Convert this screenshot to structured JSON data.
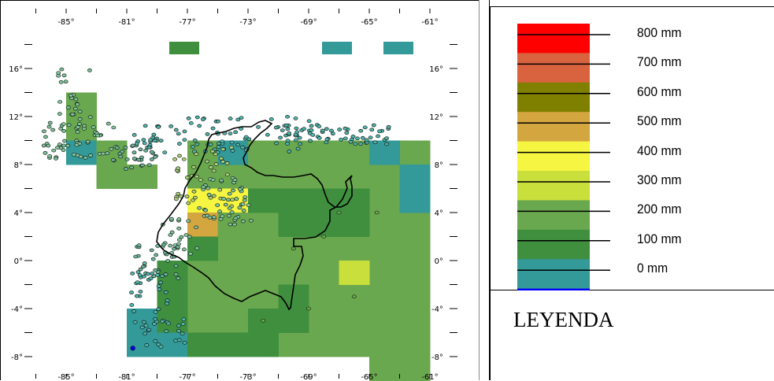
{
  "map": {
    "x_ticks_top": [
      "-85°",
      "-81°",
      "-77°",
      "-73°",
      "-69°",
      "-65°",
      "-61°"
    ],
    "x_ticks_bottom": [
      "-85°",
      "-81°",
      "-77°",
      "-73°",
      "-69°",
      "-65°",
      "-61°"
    ],
    "y_ticks_left": [
      "16°",
      "12°",
      "8°",
      "4°",
      "0°",
      "-4°",
      "-8°"
    ],
    "y_ticks_right": [
      "16°",
      "12°",
      "8°",
      "4°",
      "0°",
      "-4°",
      "-8°"
    ],
    "lon_range": [
      -86.5,
      -60
    ],
    "lat_range": [
      -9,
      19
    ],
    "colors": {
      "c0": "#0000ff",
      "c100": "#339999",
      "c200": "#3f8f3f",
      "c300": "#6aa84f",
      "c400": "#c8df3c",
      "c500": "#f5f542",
      "c600": "#d4a640",
      "c700": "#7f7f00",
      "c800": "#d9633f",
      "c900": "#ff0000"
    }
  },
  "legend": {
    "title": "LEYENDA",
    "entries": [
      {
        "label": "800 mm",
        "color": "#ff0000"
      },
      {
        "label": "700 mm",
        "color": "#d9633f"
      },
      {
        "label": "600 mm",
        "color": "#7f7f00"
      },
      {
        "label": "500 mm",
        "color": "#d4a640"
      },
      {
        "label": "400 mm",
        "color": "#f5f542"
      },
      {
        "label": "300 mm",
        "color": "#c8df3c"
      },
      {
        "label": "200 mm",
        "color": "#6aa84f"
      },
      {
        "label": "100 mm",
        "color": "#3f8f3f"
      },
      {
        "label": "0 mm",
        "color": "#339999"
      }
    ],
    "bottom_color": "#0000ff"
  }
}
